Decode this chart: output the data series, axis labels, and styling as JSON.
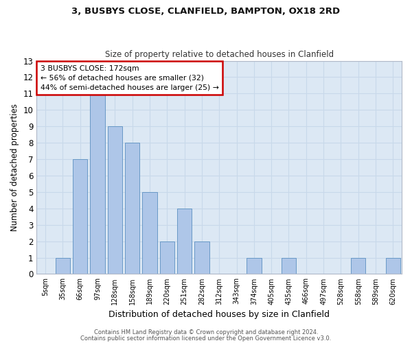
{
  "title1": "3, BUSBYS CLOSE, CLANFIELD, BAMPTON, OX18 2RD",
  "title2": "Size of property relative to detached houses in Clanfield",
  "xlabel": "Distribution of detached houses by size in Clanfield",
  "ylabel": "Number of detached properties",
  "bin_labels": [
    "5sqm",
    "35sqm",
    "66sqm",
    "97sqm",
    "128sqm",
    "158sqm",
    "189sqm",
    "220sqm",
    "251sqm",
    "282sqm",
    "312sqm",
    "343sqm",
    "374sqm",
    "405sqm",
    "435sqm",
    "466sqm",
    "497sqm",
    "528sqm",
    "558sqm",
    "589sqm",
    "620sqm"
  ],
  "bar_values": [
    0,
    1,
    7,
    11,
    9,
    8,
    5,
    2,
    4,
    2,
    0,
    0,
    1,
    0,
    1,
    0,
    0,
    0,
    1,
    0,
    1
  ],
  "bar_color": "#aec6e8",
  "bar_edge_color": "#5a8fc0",
  "ylim": [
    0,
    13
  ],
  "yticks": [
    0,
    1,
    2,
    3,
    4,
    5,
    6,
    7,
    8,
    9,
    10,
    11,
    12,
    13
  ],
  "annotation_text": "3 BUSBYS CLOSE: 172sqm\n← 56% of detached houses are smaller (32)\n44% of semi-detached houses are larger (25) →",
  "annotation_box_color": "#ffffff",
  "annotation_box_edge_color": "#cc0000",
  "footer1": "Contains HM Land Registry data © Crown copyright and database right 2024.",
  "footer2": "Contains public sector information licensed under the Open Government Licence v3.0.",
  "grid_color": "#c8d8ea",
  "background_color": "#dce8f4"
}
